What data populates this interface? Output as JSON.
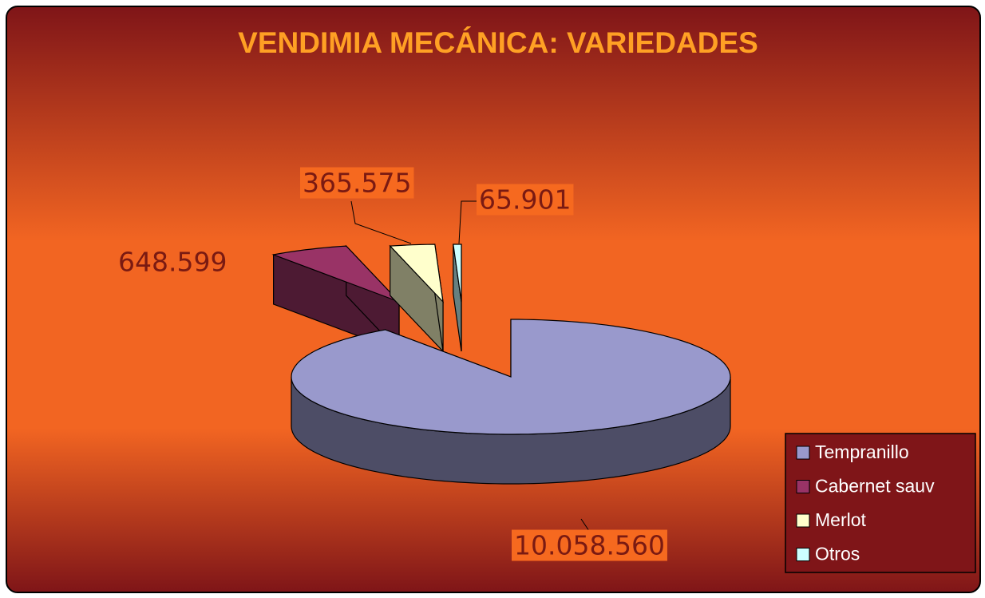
{
  "chart_data": {
    "type": "pie",
    "title": "VENDIMIA MECÁNICA: VARIEDADES",
    "categories": [
      "Tempranillo",
      "Cabernet sauv",
      "Merlot",
      "Otros"
    ],
    "values": [
      10058560,
      648599,
      365575,
      65901
    ],
    "value_labels": [
      "10.058.560",
      "648.599",
      "365.575",
      "65.901"
    ],
    "colors": [
      "#9999cc",
      "#993366",
      "#ffffcc",
      "#ccffff"
    ],
    "legend": "bottom-right"
  }
}
